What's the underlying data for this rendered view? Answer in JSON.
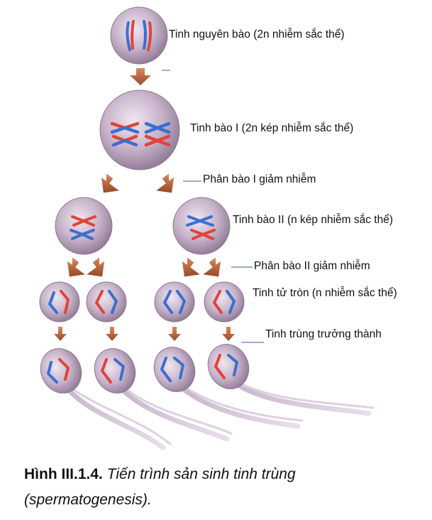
{
  "labels": {
    "spermatogonium": "Tinh nguyên bào  (2n nhiễm sắc thể)",
    "primary_spermatocyte": "Tinh bào  I (2n kép nhiễm sắc thể)",
    "meiosis_1": "Phân bào I giảm nhiễm",
    "secondary_spermatocyte": "Tinh bào  II (n kép nhiễm sắc thể)",
    "meiosis_2": "Phân bào II giảm nhiễm",
    "spermatid": "Tinh tử tròn (n nhiễm sắc thể)",
    "mature_sperm": "Tinh trùng trưởng thành"
  },
  "caption": {
    "number": "Hình III.1.4.",
    "title": "Tiến trình sản sinh tinh trùng (spermatogenesis)."
  },
  "colors": {
    "chromosome_red": "#e0443a",
    "chromosome_blue": "#3b6fd0",
    "cell_fill": "#b9a5bd",
    "arrow": "#b0603a",
    "leader_line": "#5b7fb5"
  }
}
